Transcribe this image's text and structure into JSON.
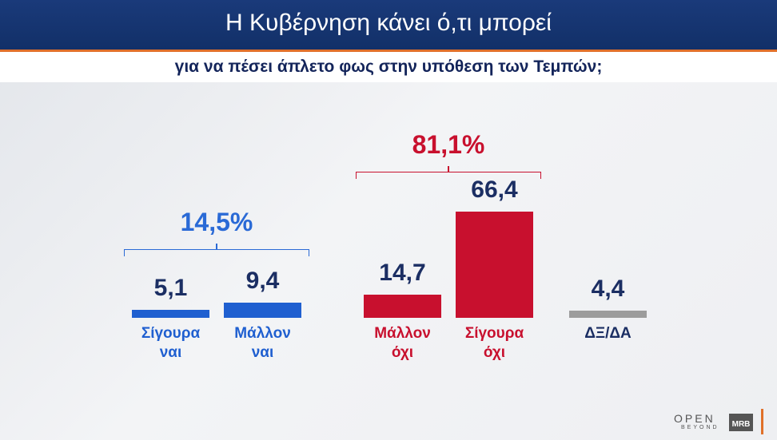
{
  "chart_data": {
    "type": "bar",
    "title": "Η Κυβέρνηση κάνει ό,τι μπορεί",
    "subtitle": "για να πέσει άπλετο φως στην υπόθεση των Τεμπών;",
    "categories": [
      "Σίγουρα ναι",
      "Μάλλον ναι",
      "Μάλλον όχι",
      "Σίγουρα όχι",
      "ΔΞ/ΔΑ"
    ],
    "values": [
      5.1,
      9.4,
      14.7,
      66.4,
      4.4
    ],
    "value_labels": [
      "5,1",
      "9,4",
      "14,7",
      "66,4",
      "4,4"
    ],
    "colors": [
      "#1f5fd0",
      "#1f5fd0",
      "#c8102e",
      "#c8102e",
      "#9c9c9c"
    ],
    "groups": [
      {
        "label": "14,5%",
        "value": 14.5,
        "color": "#2a6ad6"
      },
      {
        "label": "81,1%",
        "value": 81.1,
        "color": "#c8102e"
      }
    ],
    "logos": [
      "OPEN",
      "BEYOND",
      "MRB"
    ]
  }
}
